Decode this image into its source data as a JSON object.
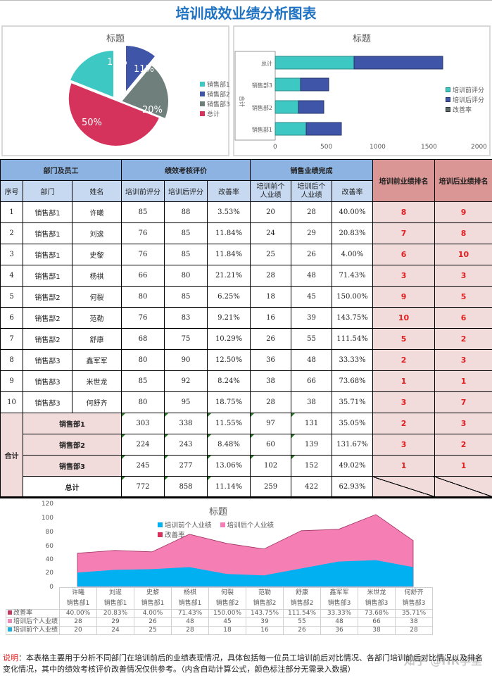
{
  "page": {
    "title": "培训成效业绩分析图表"
  },
  "pie_chart": {
    "title": "标题",
    "legend": [
      {
        "label": "销售部1",
        "color": "#3ec8c4"
      },
      {
        "label": "销售部2",
        "color": "#3e55a8"
      },
      {
        "label": "销售部3",
        "color": "#6e7f7c"
      },
      {
        "label": "总计",
        "color": "#d6335c"
      }
    ]
  },
  "bar_chart": {
    "title": "标题",
    "group_label": "合计",
    "x_ticks": [
      "0",
      "500",
      "1000",
      "1500",
      "2000"
    ],
    "legend": [
      {
        "label": "培训前评分",
        "color": "#3ec8c4"
      },
      {
        "label": "培训后评分",
        "color": "#3e55a8"
      },
      {
        "label": "改善率",
        "color": "#5a6a6a"
      }
    ]
  },
  "table": {
    "group_headers": {
      "dept_staff": "部门及员工",
      "perf_eval": "绩效考核评价",
      "sales": "销售业绩完成",
      "rank_before": "培训前业绩排名",
      "rank_after": "培训后业绩排名"
    },
    "col_headers": {
      "seq": "序号",
      "dept": "部门",
      "name": "姓名",
      "score_before": "培训前评分",
      "score_after": "培训后评分",
      "score_rate": "改善率",
      "sales_before": "培训前个人业绩",
      "sales_after": "培训后个人业绩",
      "sales_rate": "改善率"
    },
    "rows": [
      {
        "seq": "1",
        "dept": "销售部1",
        "name": "许曦",
        "sb": "85",
        "sa": "88",
        "sr": "3.53%",
        "pb": "20",
        "pa": "28",
        "pr": "40.00%",
        "rb": "8",
        "ra": "9"
      },
      {
        "seq": "2",
        "dept": "销售部1",
        "name": "刘逡",
        "sb": "76",
        "sa": "85",
        "sr": "11.84%",
        "pb": "24",
        "pa": "29",
        "pr": "20.83%",
        "rb": "7",
        "ra": "8"
      },
      {
        "seq": "3",
        "dept": "销售部1",
        "name": "史黎",
        "sb": "76",
        "sa": "85",
        "sr": "11.84%",
        "pb": "25",
        "pa": "26",
        "pr": "4.00%",
        "rb": "6",
        "ra": "10"
      },
      {
        "seq": "4",
        "dept": "销售部1",
        "name": "杨祺",
        "sb": "66",
        "sa": "80",
        "sr": "21.21%",
        "pb": "28",
        "pa": "48",
        "pr": "71.43%",
        "rb": "3",
        "ra": "3"
      },
      {
        "seq": "5",
        "dept": "销售部2",
        "name": "何裂",
        "sb": "80",
        "sa": "85",
        "sr": "6.25%",
        "pb": "18",
        "pa": "45",
        "pr": "150.00%",
        "rb": "9",
        "ra": "5"
      },
      {
        "seq": "6",
        "dept": "销售部2",
        "name": "范勒",
        "sb": "76",
        "sa": "83",
        "sr": "9.21%",
        "pb": "16",
        "pa": "39",
        "pr": "143.75%",
        "rb": "10",
        "ra": "6"
      },
      {
        "seq": "7",
        "dept": "销售部2",
        "name": "舒康",
        "sb": "68",
        "sa": "75",
        "sr": "10.29%",
        "pb": "26",
        "pa": "55",
        "pr": "111.54%",
        "rb": "5",
        "ra": "2"
      },
      {
        "seq": "8",
        "dept": "销售部3",
        "name": "鑫军军",
        "sb": "80",
        "sa": "90",
        "sr": "12.50%",
        "pb": "36",
        "pa": "48",
        "pr": "33.33%",
        "rb": "2",
        "ra": "3"
      },
      {
        "seq": "9",
        "dept": "销售部3",
        "name": "米世龙",
        "sb": "85",
        "sa": "92",
        "sr": "8.24%",
        "pb": "38",
        "pa": "66",
        "pr": "73.68%",
        "rb": "1",
        "ra": "1"
      },
      {
        "seq": "10",
        "dept": "销售部3",
        "name": "何舒齐",
        "sb": "80",
        "sa": "95",
        "sr": "18.75%",
        "pb": "28",
        "pa": "38",
        "pr": "35.71%",
        "rb": "3",
        "ra": "7"
      }
    ],
    "summary_label": "合计",
    "summary": [
      {
        "label": "销售部1",
        "sb": "303",
        "sa": "338",
        "sr": "11.55%",
        "pb": "97",
        "pa": "131",
        "pr": "35.05%",
        "rb": "2",
        "ra": "3"
      },
      {
        "label": "销售部2",
        "sb": "224",
        "sa": "243",
        "sr": "8.48%",
        "pb": "60",
        "pa": "139",
        "pr": "131.67%",
        "rb": "3",
        "ra": "2"
      },
      {
        "label": "销售部3",
        "sb": "245",
        "sa": "277",
        "sr": "13.06%",
        "pb": "102",
        "pa": "152",
        "pr": "49.02%",
        "rb": "1",
        "ra": "1"
      },
      {
        "label": "总计",
        "sb": "772",
        "sa": "858",
        "sr": "11.14%",
        "pb": "259",
        "pa": "422",
        "pr": "62.93%",
        "rb": "",
        "ra": ""
      }
    ]
  },
  "area_chart": {
    "title": "标题",
    "y_ticks": [
      "120",
      "100",
      "80",
      "60",
      "40",
      "20",
      "0"
    ],
    "legend": [
      {
        "label": "培训前个人业绩",
        "color": "#00b0f0"
      },
      {
        "label": "培训后个人业绩",
        "color": "#f57fb5"
      },
      {
        "label": "改善率",
        "color": "#d6335c"
      }
    ],
    "categories": [
      {
        "name": "许曦",
        "dept": "销售部1"
      },
      {
        "name": "刘逡",
        "dept": "销售部1"
      },
      {
        "name": "史黎",
        "dept": "销售部1"
      },
      {
        "name": "杨祺",
        "dept": "销售部1"
      },
      {
        "name": "何裂",
        "dept": "销售部2"
      },
      {
        "name": "范勒",
        "dept": "销售部2"
      },
      {
        "name": "舒康",
        "dept": "销售部2"
      },
      {
        "name": "鑫军军",
        "dept": "销售部3"
      },
      {
        "name": "米世龙",
        "dept": "销售部3"
      },
      {
        "name": "何舒齐",
        "dept": "销售部3"
      }
    ],
    "table_rows": [
      {
        "label": "改善率",
        "color": "#c0395e",
        "values": [
          "40.00%",
          "20.83%",
          "4.00%",
          "71.43%",
          "150.00%",
          "143.75%",
          "111.54%",
          "33.33%",
          "73.68%",
          "35.71%"
        ]
      },
      {
        "label": "培训后个人业绩",
        "color": "#f08ab8",
        "values": [
          "28",
          "29",
          "26",
          "48",
          "45",
          "39",
          "55",
          "48",
          "66",
          "38"
        ]
      },
      {
        "label": "培训前个人业绩",
        "color": "#1fb0e0",
        "values": [
          "20",
          "24",
          "25",
          "28",
          "18",
          "16",
          "26",
          "36",
          "38",
          "28"
        ]
      }
    ]
  },
  "chart_data": [
    {
      "type": "pie",
      "title": "标题",
      "categories": [
        "销售部1",
        "销售部2",
        "销售部3",
        "总计"
      ],
      "values": [
        19,
        11,
        20,
        50
      ],
      "labels": [
        "19%",
        "11%",
        "20%",
        "50%"
      ],
      "legend_position": "right"
    },
    {
      "type": "bar",
      "orientation": "horizontal",
      "stacked": true,
      "title": "标题",
      "categories": [
        "销售部1",
        "销售部2",
        "销售部3",
        "总计"
      ],
      "group_label": "合计",
      "series": [
        {
          "name": "培训前评分",
          "values": [
            303,
            224,
            245,
            772
          ]
        },
        {
          "name": "培训后评分",
          "values": [
            338,
            243,
            277,
            858
          ]
        },
        {
          "name": "改善率",
          "values": [
            0.1155,
            0.0848,
            0.1306,
            0.1114
          ]
        }
      ],
      "xlim": [
        0,
        2000
      ],
      "x_ticks": [
        0,
        500,
        1000,
        1500,
        2000
      ],
      "legend_position": "right"
    },
    {
      "type": "area",
      "stacked": true,
      "title": "标题",
      "categories": [
        "许曦",
        "刘逡",
        "史黎",
        "杨祺",
        "何裂",
        "范勒",
        "舒康",
        "鑫军军",
        "米世龙",
        "何舒齐"
      ],
      "series": [
        {
          "name": "培训前个人业绩",
          "values": [
            20,
            24,
            25,
            28,
            18,
            16,
            26,
            36,
            38,
            28
          ]
        },
        {
          "name": "培训后个人业绩",
          "values": [
            28,
            29,
            26,
            48,
            45,
            39,
            55,
            48,
            66,
            38
          ]
        },
        {
          "name": "改善率",
          "values": [
            0.4,
            0.2083,
            0.04,
            0.7143,
            1.5,
            1.4375,
            1.1154,
            0.3333,
            0.7368,
            0.3571
          ]
        }
      ],
      "ylim": [
        0,
        120
      ],
      "y_ticks": [
        0,
        20,
        40,
        60,
        80,
        100,
        120
      ],
      "legend_position": "top",
      "data_table": true
    }
  ],
  "note": {
    "label": "说明",
    "text": "：本表格主要用于分析不同部门在培训前后的业绩表现情况，具体包括每一位员工培训前后对比情况、各部门培训前后对比情况以及排名变化情况，其中的绩效考核评价改善情况仅供参考。（内含自动计算公式，颜色标注部分无需录入数据）"
  },
  "watermark": "知乎 @HR学堂"
}
